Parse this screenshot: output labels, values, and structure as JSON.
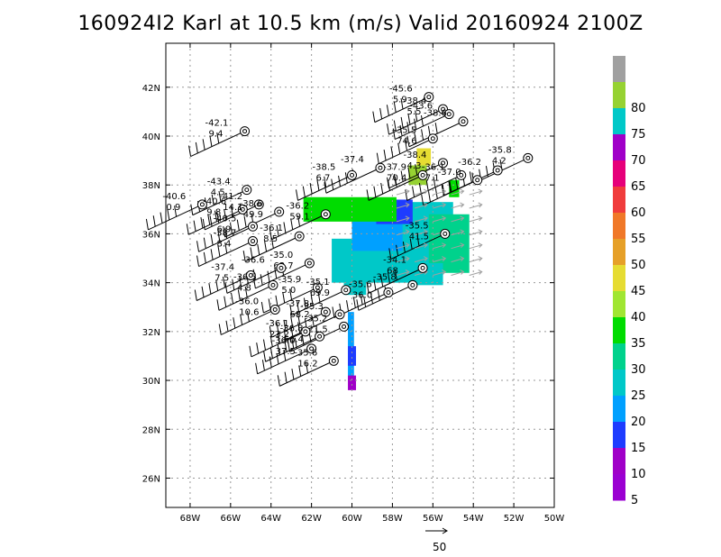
{
  "title": "160924I2 Karl at 10.5 km (m/s) Valid 20160924 2100Z",
  "map": {
    "lon_range": [
      -69.2,
      -50.0
    ],
    "lat_range": [
      24.8,
      43.8
    ],
    "lat_ticks": [
      {
        "v": 42,
        "label": "42N"
      },
      {
        "v": 40,
        "label": "40N"
      },
      {
        "v": 38,
        "label": "38N"
      },
      {
        "v": 36,
        "label": "36N"
      },
      {
        "v": 34,
        "label": "34N"
      },
      {
        "v": 32,
        "label": "32N"
      },
      {
        "v": 30,
        "label": "30N"
      },
      {
        "v": 28,
        "label": "28N"
      },
      {
        "v": 26,
        "label": "26N"
      }
    ],
    "lon_ticks": [
      {
        "v": -68,
        "label": "68W"
      },
      {
        "v": -66,
        "label": "66W"
      },
      {
        "v": -64,
        "label": "64W"
      },
      {
        "v": -62,
        "label": "62W"
      },
      {
        "v": -60,
        "label": "60W"
      },
      {
        "v": -58,
        "label": "58W"
      },
      {
        "v": -56,
        "label": "56W"
      },
      {
        "v": -54,
        "label": "54W"
      },
      {
        "v": -52,
        "label": "52W"
      },
      {
        "v": -50,
        "label": "50W"
      }
    ],
    "grid": "dotted"
  },
  "colorbar": {
    "levels": [
      {
        "label": "",
        "color": "#a0a0a0"
      },
      {
        "label": "80",
        "color": "#96d232"
      },
      {
        "label": "75",
        "color": "#00c8c8"
      },
      {
        "label": "70",
        "color": "#a000c8"
      },
      {
        "label": "65",
        "color": "#e6007a"
      },
      {
        "label": "60",
        "color": "#f03c3c"
      },
      {
        "label": "55",
        "color": "#f07828"
      },
      {
        "label": "50",
        "color": "#e6a028"
      },
      {
        "label": "45",
        "color": "#e6dc32"
      },
      {
        "label": "40",
        "color": "#a0e632"
      },
      {
        "label": "35",
        "color": "#00dc00"
      },
      {
        "label": "30",
        "color": "#00d28c"
      },
      {
        "label": "25",
        "color": "#00c8c8"
      },
      {
        "label": "20",
        "color": "#00a0ff"
      },
      {
        "label": "15",
        "color": "#1e3cff"
      },
      {
        "label": "10",
        "color": "#a000c8"
      },
      {
        "label": "5",
        "color": ""
      }
    ]
  },
  "shading": [
    {
      "lon": [
        -61.0,
        -56.8
      ],
      "lat": [
        35.8,
        34.0
      ],
      "color": "#00c8c8"
    },
    {
      "lon": [
        -58.5,
        -55.0
      ],
      "lat": [
        37.3,
        34.8
      ],
      "color": "#00c8c8"
    },
    {
      "lon": [
        -56.2,
        -54.2
      ],
      "lat": [
        36.8,
        34.4
      ],
      "color": "#00d28c"
    },
    {
      "lon": [
        -60.0,
        -57.5
      ],
      "lat": [
        36.6,
        35.3
      ],
      "color": "#00a0ff"
    },
    {
      "lon": [
        -58.8,
        -57.0
      ],
      "lat": [
        37.4,
        36.4
      ],
      "color": "#1e3cff"
    },
    {
      "lon": [
        -60.4,
        -59.3
      ],
      "lat": [
        34.5,
        33.5
      ],
      "color": "#00c8c8"
    },
    {
      "lon": [
        -57.2,
        -55.5
      ],
      "lat": [
        34.8,
        33.9
      ],
      "color": "#00c8c8"
    },
    {
      "lon": [
        -62.3,
        -62.0
      ],
      "lat": [
        36.8,
        36.5
      ],
      "color": "#1e3cff"
    },
    {
      "lon": [
        -60.2,
        -59.9
      ],
      "lat": [
        32.8,
        30.0
      ],
      "color": "#00a0ff"
    },
    {
      "lon": [
        -60.2,
        -59.8
      ],
      "lat": [
        31.4,
        30.6
      ],
      "color": "#1e3cff"
    },
    {
      "lon": [
        -60.2,
        -59.8
      ],
      "lat": [
        30.2,
        29.6
      ],
      "color": "#a000c8"
    },
    {
      "lon": [
        -62.4,
        -57.8
      ],
      "lat": [
        37.5,
        36.5
      ],
      "color": "#00dc00"
    },
    {
      "lon": [
        -57.2,
        -56.3
      ],
      "lat": [
        38.8,
        38.0
      ],
      "color": "#96d232"
    },
    {
      "lon": [
        -56.8,
        -56.1
      ],
      "lat": [
        39.5,
        38.8
      ],
      "color": "#e6dc32"
    },
    {
      "lon": [
        -55.2,
        -54.7
      ],
      "lat": [
        38.2,
        37.5
      ],
      "color": "#00dc00"
    }
  ],
  "stations": [
    {
      "lon": -56.2,
      "lat": 41.6,
      "top": "-45.6",
      "bot": "5.9"
    },
    {
      "lon": -55.5,
      "lat": 41.1,
      "top": "-38.4",
      "bot": "5.5"
    },
    {
      "lon": -55.2,
      "lat": 40.9,
      "top": "-43.6",
      "bot": ""
    },
    {
      "lon": -54.5,
      "lat": 40.6,
      "top": "-38.6",
      "bot": ""
    },
    {
      "lon": -56.0,
      "lat": 39.9,
      "top": "-35.5",
      "bot": "74.6"
    },
    {
      "lon": -55.5,
      "lat": 38.9,
      "top": "-38.4",
      "bot": "4.3"
    },
    {
      "lon": -51.3,
      "lat": 39.1,
      "top": "-35.8",
      "bot": "4.2"
    },
    {
      "lon": -52.8,
      "lat": 38.6,
      "top": "-36.2",
      "bot": ""
    },
    {
      "lon": -56.5,
      "lat": 38.4,
      "top": "-37.9",
      "bot": "70.4"
    },
    {
      "lon": -54.6,
      "lat": 38.4,
      "top": "-36.1",
      "bot": "7.1"
    },
    {
      "lon": -53.8,
      "lat": 38.2,
      "top": "-37.0",
      "bot": ""
    },
    {
      "lon": -60.0,
      "lat": 38.4,
      "top": "-38.5",
      "bot": "6.7"
    },
    {
      "lon": -58.6,
      "lat": 38.7,
      "top": "-37.4",
      "bot": ""
    },
    {
      "lon": -65.3,
      "lat": 40.2,
      "top": "-42.1",
      "bot": "9.4"
    },
    {
      "lon": -65.2,
      "lat": 37.8,
      "top": "-43.4",
      "bot": "4.5"
    },
    {
      "lon": -67.4,
      "lat": 37.2,
      "top": "-40.6",
      "bot": "0.9"
    },
    {
      "lon": -65.4,
      "lat": 37.0,
      "top": "-40.6",
      "bot": "9.8"
    },
    {
      "lon": -64.6,
      "lat": 37.2,
      "top": "-41.2",
      "bot": "14.1"
    },
    {
      "lon": -63.6,
      "lat": 36.9,
      "top": "-38.6",
      "bot": "49.9"
    },
    {
      "lon": -61.3,
      "lat": 36.8,
      "top": "-36.2",
      "bot": "59.1"
    },
    {
      "lon": -64.9,
      "lat": 36.3,
      "top": "-40.5",
      "bot": "6.9"
    },
    {
      "lon": -64.9,
      "lat": 35.7,
      "top": "-38.7",
      "bot": "8.4"
    },
    {
      "lon": -62.6,
      "lat": 35.9,
      "top": "-36.1",
      "bot": "8.5"
    },
    {
      "lon": -55.4,
      "lat": 36.0,
      "top": "-35.5",
      "bot": "41.5"
    },
    {
      "lon": -56.5,
      "lat": 34.6,
      "top": "-34.1",
      "bot": "68"
    },
    {
      "lon": -62.1,
      "lat": 34.8,
      "top": "-35.0",
      "bot": "63.7"
    },
    {
      "lon": -63.5,
      "lat": 34.6,
      "top": "-36.6",
      "bot": ""
    },
    {
      "lon": -65.0,
      "lat": 34.3,
      "top": "-37.4",
      "bot": "7.5"
    },
    {
      "lon": -63.9,
      "lat": 33.9,
      "top": "-36.5",
      "bot": "4.8"
    },
    {
      "lon": -61.7,
      "lat": 33.8,
      "top": "-35.9",
      "bot": "5.0"
    },
    {
      "lon": -60.3,
      "lat": 33.7,
      "top": "-35.1",
      "bot": "69.9"
    },
    {
      "lon": -58.2,
      "lat": 33.6,
      "top": "-35.6",
      "bot": "36.0"
    },
    {
      "lon": -57.0,
      "lat": 33.9,
      "top": "-35.8",
      "bot": ""
    },
    {
      "lon": -63.8,
      "lat": 32.9,
      "top": "-36.0",
      "bot": "10.6"
    },
    {
      "lon": -61.3,
      "lat": 32.8,
      "top": "-37.8",
      "bot": "68.2"
    },
    {
      "lon": -60.6,
      "lat": 32.7,
      "top": "-35.3",
      "bot": ""
    },
    {
      "lon": -60.4,
      "lat": 32.2,
      "top": "-35.2",
      "bot": "21.5"
    },
    {
      "lon": -62.3,
      "lat": 32.0,
      "top": "-36.1",
      "bot": "23.2"
    },
    {
      "lon": -61.6,
      "lat": 31.8,
      "top": "-36.8",
      "bot": "66.4"
    },
    {
      "lon": -62.0,
      "lat": 31.3,
      "top": "-36.0",
      "bot": "37.5"
    },
    {
      "lon": -60.9,
      "lat": 30.8,
      "top": "-35.6",
      "bot": "16.2"
    }
  ],
  "reference_vector": {
    "label": "50"
  }
}
